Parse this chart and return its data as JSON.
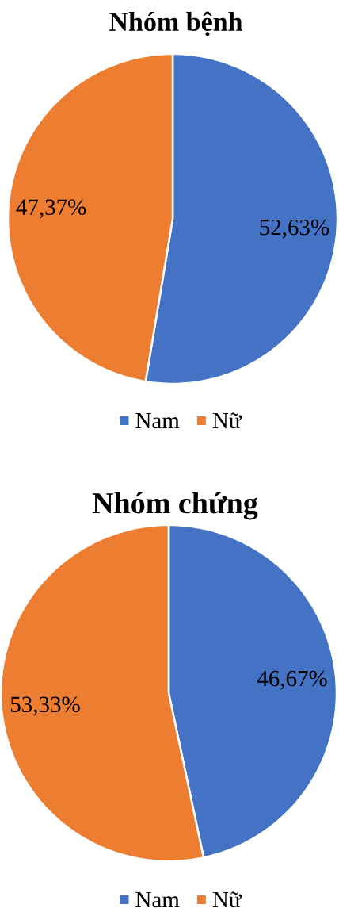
{
  "chart_data": [
    {
      "type": "pie",
      "title": "Nhóm bệnh",
      "categories": [
        "Nam",
        "Nữ"
      ],
      "values": [
        52.63,
        47.37
      ],
      "colors": [
        "#4472c4",
        "#ed7d31"
      ],
      "value_labels": [
        "52,63%",
        "47,37%"
      ],
      "legend": "bottom"
    },
    {
      "type": "pie",
      "title": "Nhóm chứng",
      "categories": [
        "Nam",
        "Nữ"
      ],
      "values": [
        46.67,
        53.33
      ],
      "colors": [
        "#4472c4",
        "#ed7d31"
      ],
      "value_labels": [
        "46,67%",
        "53,33%"
      ],
      "legend": "bottom"
    }
  ]
}
